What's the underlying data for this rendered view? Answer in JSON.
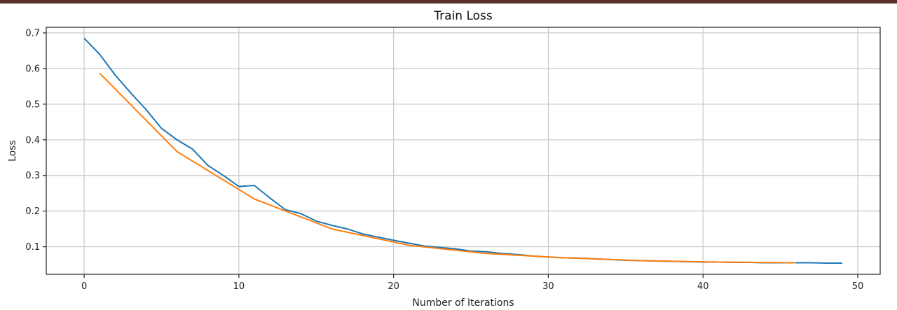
{
  "chart_data": {
    "type": "line",
    "title": "Train Loss",
    "xlabel": "Number of Iterations",
    "ylabel": "Loss",
    "xlim": [
      -2.45,
      51.45
    ],
    "ylim": [
      0.0226,
      0.7157
    ],
    "xticks": [
      0,
      10,
      20,
      30,
      40,
      50
    ],
    "yticks": [
      0.1,
      0.2,
      0.3,
      0.4,
      0.5,
      0.6,
      0.7
    ],
    "xtick_labels": [
      "0",
      "10",
      "20",
      "30",
      "40",
      "50"
    ],
    "ytick_labels": [
      "0.1",
      "0.2",
      "0.3",
      "0.4",
      "0.5",
      "0.6",
      "0.7"
    ],
    "grid": true,
    "series": [
      {
        "color": "#1f77b4",
        "x": [
          0,
          1,
          2,
          3,
          4,
          5,
          6,
          7,
          8,
          9,
          10,
          11,
          12,
          13,
          14,
          15,
          16,
          17,
          18,
          19,
          20,
          21,
          22,
          23,
          24,
          25,
          26,
          27,
          28,
          29,
          30,
          31,
          32,
          33,
          34,
          35,
          36,
          37,
          38,
          39,
          40,
          41,
          42,
          43,
          44,
          45,
          46,
          47,
          48,
          49
        ],
        "y": [
          0.685,
          0.64,
          0.582,
          0.532,
          0.485,
          0.432,
          0.4,
          0.374,
          0.328,
          0.3,
          0.269,
          0.272,
          0.237,
          0.204,
          0.193,
          0.172,
          0.16,
          0.15,
          0.136,
          0.127,
          0.118,
          0.11,
          0.102,
          0.098,
          0.094,
          0.088,
          0.086,
          0.081,
          0.078,
          0.074,
          0.071,
          0.069,
          0.068,
          0.066,
          0.064,
          0.062,
          0.061,
          0.06,
          0.059,
          0.058,
          0.057,
          0.057,
          0.056,
          0.056,
          0.055,
          0.055,
          0.055,
          0.055,
          0.054,
          0.054
        ]
      },
      {
        "color": "#ff7f0e",
        "x": [
          1,
          6,
          11,
          16,
          21,
          26,
          31,
          36,
          41,
          46
        ],
        "y": [
          0.587,
          0.367,
          0.234,
          0.15,
          0.104,
          0.081,
          0.069,
          0.061,
          0.057,
          0.055
        ]
      }
    ]
  }
}
